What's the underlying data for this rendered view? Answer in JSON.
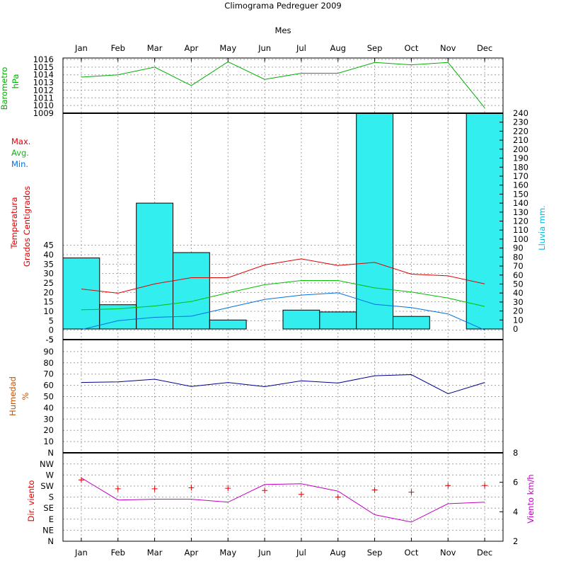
{
  "title": "Climograma Pedreguer 2009",
  "xlabel": "Mes",
  "chart_data": {
    "type": "climograph",
    "categories": [
      "Jan",
      "Feb",
      "Mar",
      "Apr",
      "May",
      "Jun",
      "Jul",
      "Aug",
      "Sep",
      "Oct",
      "Nov",
      "Dec"
    ],
    "barometer": {
      "ylabel": [
        "Barometro",
        "hPa"
      ],
      "color": "#00b000",
      "ylim": [
        1009,
        1016
      ],
      "ticks": [
        "1009",
        "1010",
        "1011",
        "1012",
        "1013",
        "1014",
        "1015",
        "1016"
      ],
      "values": [
        1013.7,
        1014.0,
        1015.0,
        1012.6,
        1015.7,
        1013.4,
        1014.2,
        1014.2,
        1015.6,
        1015.3,
        1015.6,
        1009.7
      ]
    },
    "temperature": {
      "ylabel": [
        "Temperatura",
        "Grados Centigrados"
      ],
      "ylabel_color": "#e00000",
      "ylim": [
        -5,
        115
      ],
      "ticks": [
        "-5",
        "0",
        "5",
        "10",
        "15",
        "20",
        "25",
        "30",
        "35",
        "40",
        "45"
      ],
      "legend": [
        {
          "name": "Max.",
          "color": "#e00000"
        },
        {
          "name": "Avg.",
          "color": "#00c000"
        },
        {
          "name": "Min.",
          "color": "#0070e0"
        }
      ],
      "series": [
        {
          "name": "Max.",
          "color": "#e00000",
          "values": [
            21.8,
            19.6,
            24.5,
            27.8,
            27.8,
            34.6,
            37.8,
            34.3,
            35.9,
            29.7,
            28.8,
            24.5
          ]
        },
        {
          "name": "Avg.",
          "color": "#00c000",
          "values": [
            10.8,
            11.3,
            12.8,
            15.2,
            19.8,
            24.1,
            26.3,
            26.3,
            22.4,
            20.2,
            17.0,
            12.6
          ]
        },
        {
          "name": "Min.",
          "color": "#0070e0",
          "values": [
            0.3,
            5.0,
            6.8,
            7.4,
            11.9,
            16.3,
            18.6,
            19.8,
            13.7,
            12.0,
            8.6,
            0.1
          ]
        }
      ]
    },
    "rain": {
      "ylabel": "Lluvia mm.",
      "color": "#33eeee",
      "ylim": [
        0,
        240
      ],
      "ticks": [
        "0",
        "10",
        "20",
        "30",
        "40",
        "50",
        "60",
        "70",
        "80",
        "90",
        "100",
        "110",
        "120",
        "130",
        "140",
        "150",
        "160",
        "170",
        "180",
        "190",
        "200",
        "210",
        "220",
        "230",
        "240"
      ],
      "values": [
        79,
        27,
        140,
        85,
        10,
        0,
        21,
        19,
        240,
        14,
        0,
        240
      ]
    },
    "humidity": {
      "ylabel": [
        "Humedad",
        "%"
      ],
      "ylabel_color": "#c85000",
      "color": "#000090",
      "ylim": [
        0,
        100
      ],
      "ticks": [
        "N",
        "10",
        "20",
        "30",
        "40",
        "50",
        "60",
        "70",
        "80",
        "90",
        "-5"
      ],
      "values": [
        62.5,
        63.0,
        65.4,
        59.0,
        62.5,
        58.8,
        64.0,
        62.0,
        68.5,
        69.5,
        52.5,
        62.5
      ]
    },
    "wind": {
      "dir_label": "Dir. viento",
      "dir_label_color": "#e00000",
      "speed_label": "Viento km/h",
      "speed_label_color": "#c000c0",
      "dir_ticks": [
        "N",
        "NE",
        "E",
        "SE",
        "S",
        "SW",
        "W",
        "NW"
      ],
      "speed_ticks": [
        "2",
        "4",
        "6",
        "8"
      ],
      "speed_ylim": [
        2,
        8
      ],
      "direction_values": [
        5.55,
        4.75,
        4.75,
        4.85,
        4.8,
        4.6,
        4.25,
        4.0,
        4.65,
        4.45,
        5.05,
        5.05
      ],
      "direction_color": "#e00000",
      "speed_values": [
        6.3,
        4.8,
        4.85,
        4.85,
        4.65,
        5.85,
        5.9,
        5.4,
        3.8,
        3.3,
        4.55,
        4.65
      ],
      "speed_color": "#c000c0"
    }
  }
}
